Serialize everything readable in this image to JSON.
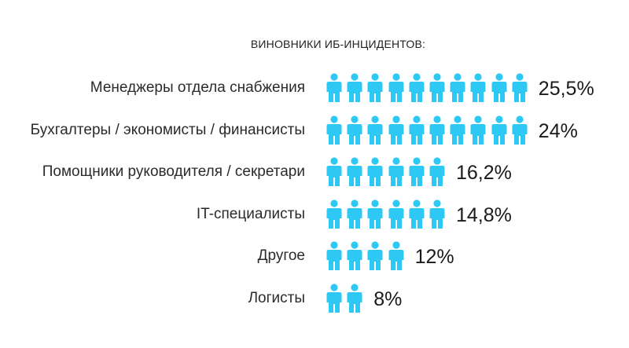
{
  "chart_data": {
    "type": "pictogram",
    "title": "ВИНОВНИКИ ИБ-ИНЦИДЕНТОВ:",
    "categories": [
      "Менеджеры отдела снабжения",
      "Бухгалтеры / экономисты / финансисты",
      "Помощники руководителя / секретари",
      "IT-специалисты",
      "Другое",
      "Логисты"
    ],
    "values": [
      25.5,
      24,
      16.2,
      14.8,
      12,
      8
    ],
    "value_labels": [
      "25,5%",
      "24%",
      "16,2%",
      "14,8%",
      "12%",
      "8%"
    ],
    "icon_counts": [
      10,
      10,
      6,
      6,
      4,
      2
    ],
    "icon": "person-icon",
    "icon_color": "#2ec8f4"
  }
}
